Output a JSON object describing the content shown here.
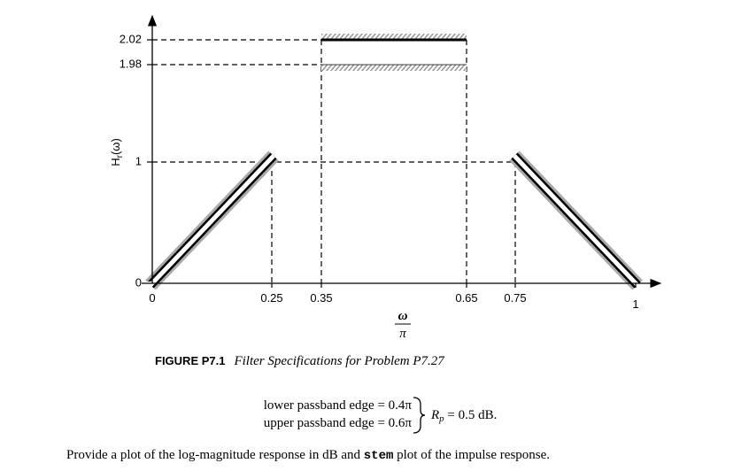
{
  "figure": {
    "y_label": {
      "main": "H",
      "sub": "r",
      "arg": "(ω)"
    },
    "x_label": {
      "numerator": "ω",
      "denominator": "π"
    },
    "yticks": [
      "0",
      "1",
      "1.98",
      "2.02"
    ],
    "xticks": [
      "0",
      "0.25",
      "0.35",
      "0.65",
      "0.75",
      "1"
    ],
    "caption": {
      "label": "FIGURE P7.1",
      "text": "Filter Specifications for Problem P7.27"
    }
  },
  "specs": {
    "lines": [
      "lower passband edge = 0.4π",
      "upper passband edge = 0.6π"
    ],
    "ripple": {
      "symbol": "R",
      "sub": "p",
      "rest": " = 0.5 dB."
    }
  },
  "paragraph": {
    "before": "Provide a plot of the log-magnitude response in dB and ",
    "code": "stem",
    "after": " plot of the impulse response."
  }
}
